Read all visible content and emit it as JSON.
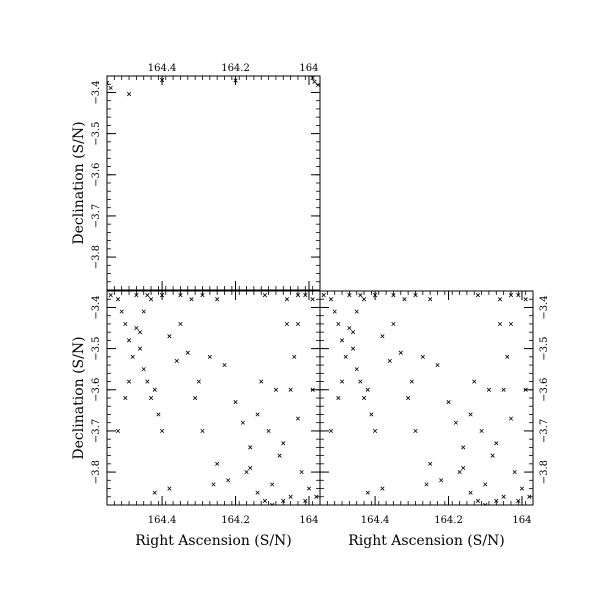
{
  "chart_data": [
    {
      "type": "scatter",
      "panel": "top-left",
      "xlabel": "",
      "ylabel": "Declination (S/N)",
      "xlim": [
        164.55,
        163.97
      ],
      "ylim": [
        -3.88,
        -3.36
      ],
      "xticks": [
        164.4,
        164.2,
        164
      ],
      "yticks": [
        -3.4,
        -3.5,
        -3.6,
        -3.7,
        -3.8
      ],
      "x_tick_labels_side": "top",
      "y_tick_labels_side": "left",
      "marker": "x",
      "points": [
        [
          164.55,
          -3.377
        ],
        [
          164.54,
          -3.389
        ],
        [
          164.49,
          -3.404
        ],
        [
          164.4,
          -3.37
        ],
        [
          164.2,
          -3.371
        ],
        [
          163.99,
          -3.365
        ],
        [
          163.985,
          -3.374
        ],
        [
          163.975,
          -3.382
        ]
      ]
    },
    {
      "type": "scatter",
      "panel": "bottom-left",
      "xlabel": "Right Ascension (S/N)",
      "ylabel": "Declination (S/N)",
      "xlim": [
        164.55,
        163.97
      ],
      "ylim": [
        -3.88,
        -3.36
      ],
      "xticks": [
        164.4,
        164.2,
        164
      ],
      "yticks": [
        -3.4,
        -3.5,
        -3.6,
        -3.7,
        -3.8
      ],
      "x_tick_labels_side": "bottom",
      "y_tick_labels_side": "left",
      "marker": "x",
      "points": [
        [
          164.54,
          -3.37
        ],
        [
          164.52,
          -3.38
        ],
        [
          164.47,
          -3.37
        ],
        [
          164.44,
          -3.37
        ],
        [
          164.43,
          -3.38
        ],
        [
          164.4,
          -3.37
        ],
        [
          164.35,
          -3.37
        ],
        [
          164.32,
          -3.38
        ],
        [
          164.29,
          -3.37
        ],
        [
          164.25,
          -3.38
        ],
        [
          164.12,
          -3.37
        ],
        [
          164.06,
          -3.38
        ],
        [
          164.03,
          -3.37
        ],
        [
          164.01,
          -3.37
        ],
        [
          163.99,
          -3.38
        ],
        [
          164.51,
          -3.41
        ],
        [
          164.5,
          -3.44
        ],
        [
          164.49,
          -3.48
        ],
        [
          164.48,
          -3.52
        ],
        [
          164.47,
          -3.45
        ],
        [
          164.46,
          -3.5
        ],
        [
          164.45,
          -3.55
        ],
        [
          164.44,
          -3.58
        ],
        [
          164.43,
          -3.62
        ],
        [
          164.42,
          -3.6
        ],
        [
          164.41,
          -3.66
        ],
        [
          164.4,
          -3.7
        ],
        [
          164.5,
          -3.62
        ],
        [
          164.52,
          -3.7
        ],
        [
          164.49,
          -3.58
        ],
        [
          164.38,
          -3.47
        ],
        [
          164.36,
          -3.53
        ],
        [
          164.35,
          -3.44
        ],
        [
          164.33,
          -3.51
        ],
        [
          164.3,
          -3.58
        ],
        [
          164.27,
          -3.52
        ],
        [
          164.23,
          -3.54
        ],
        [
          164.2,
          -3.63
        ],
        [
          164.18,
          -3.68
        ],
        [
          164.16,
          -3.74
        ],
        [
          164.14,
          -3.66
        ],
        [
          164.11,
          -3.7
        ],
        [
          164.09,
          -3.6
        ],
        [
          164.08,
          -3.76
        ],
        [
          164.07,
          -3.73
        ],
        [
          164.05,
          -3.6
        ],
        [
          164.03,
          -3.67
        ],
        [
          164.06,
          -3.44
        ],
        [
          164.04,
          -3.52
        ],
        [
          164.02,
          -3.8
        ],
        [
          164.0,
          -3.84
        ],
        [
          163.99,
          -3.6
        ],
        [
          164.25,
          -3.78
        ],
        [
          164.22,
          -3.82
        ],
        [
          164.17,
          -3.8
        ],
        [
          164.14,
          -3.85
        ],
        [
          164.1,
          -3.83
        ],
        [
          164.31,
          -3.62
        ],
        [
          164.29,
          -3.7
        ],
        [
          164.13,
          -3.58
        ],
        [
          164.38,
          -3.84
        ],
        [
          164.42,
          -3.85
        ],
        [
          164.12,
          -3.87
        ],
        [
          164.1,
          -3.88
        ],
        [
          164.07,
          -3.87
        ],
        [
          164.05,
          -3.86
        ],
        [
          164.01,
          -3.87
        ],
        [
          163.98,
          -3.86
        ],
        [
          164.45,
          -3.41
        ],
        [
          164.46,
          -3.46
        ],
        [
          164.16,
          -3.79
        ],
        [
          164.26,
          -3.83
        ],
        [
          164.03,
          -3.44
        ]
      ]
    },
    {
      "type": "scatter",
      "panel": "bottom-right",
      "xlabel": "Right Ascension (S/N)",
      "ylabel": "",
      "xlim": [
        164.55,
        163.97
      ],
      "ylim": [
        -3.88,
        -3.36
      ],
      "xticks": [
        164.4,
        164.2,
        164
      ],
      "yticks": [
        -3.4,
        -3.5,
        -3.6,
        -3.7,
        -3.8
      ],
      "x_tick_labels_side": "bottom",
      "y_tick_labels_side": "right",
      "marker": "x",
      "points": [
        [
          164.54,
          -3.37
        ],
        [
          164.52,
          -3.38
        ],
        [
          164.47,
          -3.37
        ],
        [
          164.44,
          -3.37
        ],
        [
          164.43,
          -3.38
        ],
        [
          164.4,
          -3.37
        ],
        [
          164.35,
          -3.37
        ],
        [
          164.32,
          -3.38
        ],
        [
          164.29,
          -3.37
        ],
        [
          164.25,
          -3.38
        ],
        [
          164.12,
          -3.37
        ],
        [
          164.06,
          -3.38
        ],
        [
          164.03,
          -3.37
        ],
        [
          164.01,
          -3.37
        ],
        [
          163.99,
          -3.38
        ],
        [
          164.51,
          -3.41
        ],
        [
          164.5,
          -3.44
        ],
        [
          164.49,
          -3.48
        ],
        [
          164.48,
          -3.52
        ],
        [
          164.47,
          -3.45
        ],
        [
          164.46,
          -3.5
        ],
        [
          164.45,
          -3.55
        ],
        [
          164.44,
          -3.58
        ],
        [
          164.43,
          -3.62
        ],
        [
          164.42,
          -3.6
        ],
        [
          164.41,
          -3.66
        ],
        [
          164.4,
          -3.7
        ],
        [
          164.5,
          -3.62
        ],
        [
          164.52,
          -3.7
        ],
        [
          164.49,
          -3.58
        ],
        [
          164.38,
          -3.47
        ],
        [
          164.36,
          -3.53
        ],
        [
          164.35,
          -3.44
        ],
        [
          164.33,
          -3.51
        ],
        [
          164.3,
          -3.58
        ],
        [
          164.27,
          -3.52
        ],
        [
          164.23,
          -3.54
        ],
        [
          164.2,
          -3.63
        ],
        [
          164.18,
          -3.68
        ],
        [
          164.16,
          -3.74
        ],
        [
          164.14,
          -3.66
        ],
        [
          164.11,
          -3.7
        ],
        [
          164.09,
          -3.6
        ],
        [
          164.08,
          -3.76
        ],
        [
          164.07,
          -3.73
        ],
        [
          164.05,
          -3.6
        ],
        [
          164.03,
          -3.67
        ],
        [
          164.06,
          -3.44
        ],
        [
          164.04,
          -3.52
        ],
        [
          164.02,
          -3.8
        ],
        [
          164.0,
          -3.84
        ],
        [
          163.99,
          -3.6
        ],
        [
          164.25,
          -3.78
        ],
        [
          164.22,
          -3.82
        ],
        [
          164.17,
          -3.8
        ],
        [
          164.14,
          -3.85
        ],
        [
          164.1,
          -3.83
        ],
        [
          164.31,
          -3.62
        ],
        [
          164.29,
          -3.7
        ],
        [
          164.13,
          -3.58
        ],
        [
          164.38,
          -3.84
        ],
        [
          164.42,
          -3.85
        ],
        [
          164.12,
          -3.87
        ],
        [
          164.1,
          -3.88
        ],
        [
          164.07,
          -3.87
        ],
        [
          164.05,
          -3.86
        ],
        [
          164.01,
          -3.87
        ],
        [
          163.98,
          -3.86
        ],
        [
          164.45,
          -3.41
        ],
        [
          164.46,
          -3.46
        ],
        [
          164.16,
          -3.79
        ],
        [
          164.26,
          -3.83
        ],
        [
          164.03,
          -3.44
        ]
      ]
    }
  ]
}
